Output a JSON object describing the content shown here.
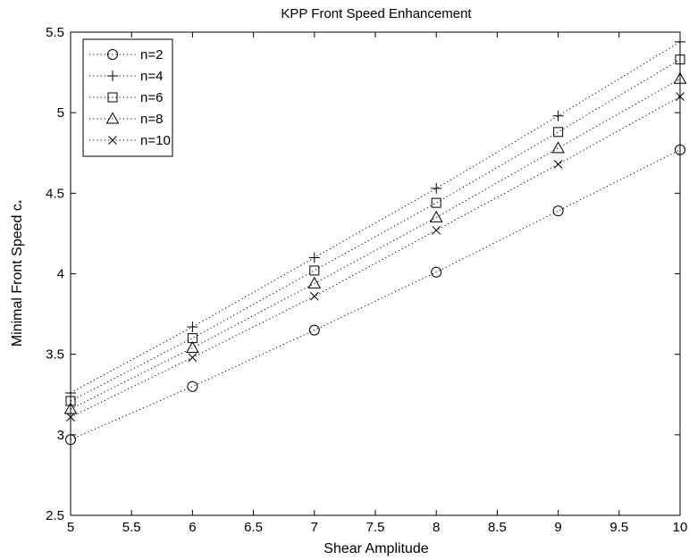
{
  "chart_data": {
    "type": "scatter",
    "title": "KPP Front Speed Enhancement",
    "xlabel": "Shear Amplitude",
    "ylabel_main": "Minimal Front Speed c",
    "ylabel_sub": "*",
    "xlim": [
      5,
      10
    ],
    "ylim": [
      2.5,
      5.5
    ],
    "xticks": [
      "5",
      "5.5",
      "6",
      "6.5",
      "7",
      "7.5",
      "8",
      "8.5",
      "9",
      "9.5",
      "10"
    ],
    "yticks": [
      "2.5",
      "3",
      "3.5",
      "4",
      "4.5",
      "5",
      "5.5"
    ],
    "grid": false,
    "legend_position": "top-left",
    "line_style": "dotted",
    "x": [
      5,
      6,
      7,
      8,
      9,
      10
    ],
    "series": [
      {
        "name": "n=2",
        "marker": "circle",
        "values": [
          2.97,
          3.3,
          3.65,
          4.01,
          4.39,
          4.77
        ]
      },
      {
        "name": "n=4",
        "marker": "plus",
        "values": [
          3.26,
          3.67,
          4.1,
          4.53,
          4.98,
          5.44
        ]
      },
      {
        "name": "n=6",
        "marker": "square",
        "values": [
          3.21,
          3.6,
          4.02,
          4.44,
          4.88,
          5.33
        ]
      },
      {
        "name": "n=8",
        "marker": "triangle",
        "values": [
          3.16,
          3.54,
          3.94,
          4.35,
          4.78,
          5.21
        ]
      },
      {
        "name": "n=10",
        "marker": "x",
        "values": [
          3.11,
          3.48,
          3.86,
          4.27,
          4.68,
          5.1
        ]
      }
    ],
    "colors": {
      "axis": "#000000",
      "series": "#000000",
      "background": "#ffffff"
    }
  }
}
